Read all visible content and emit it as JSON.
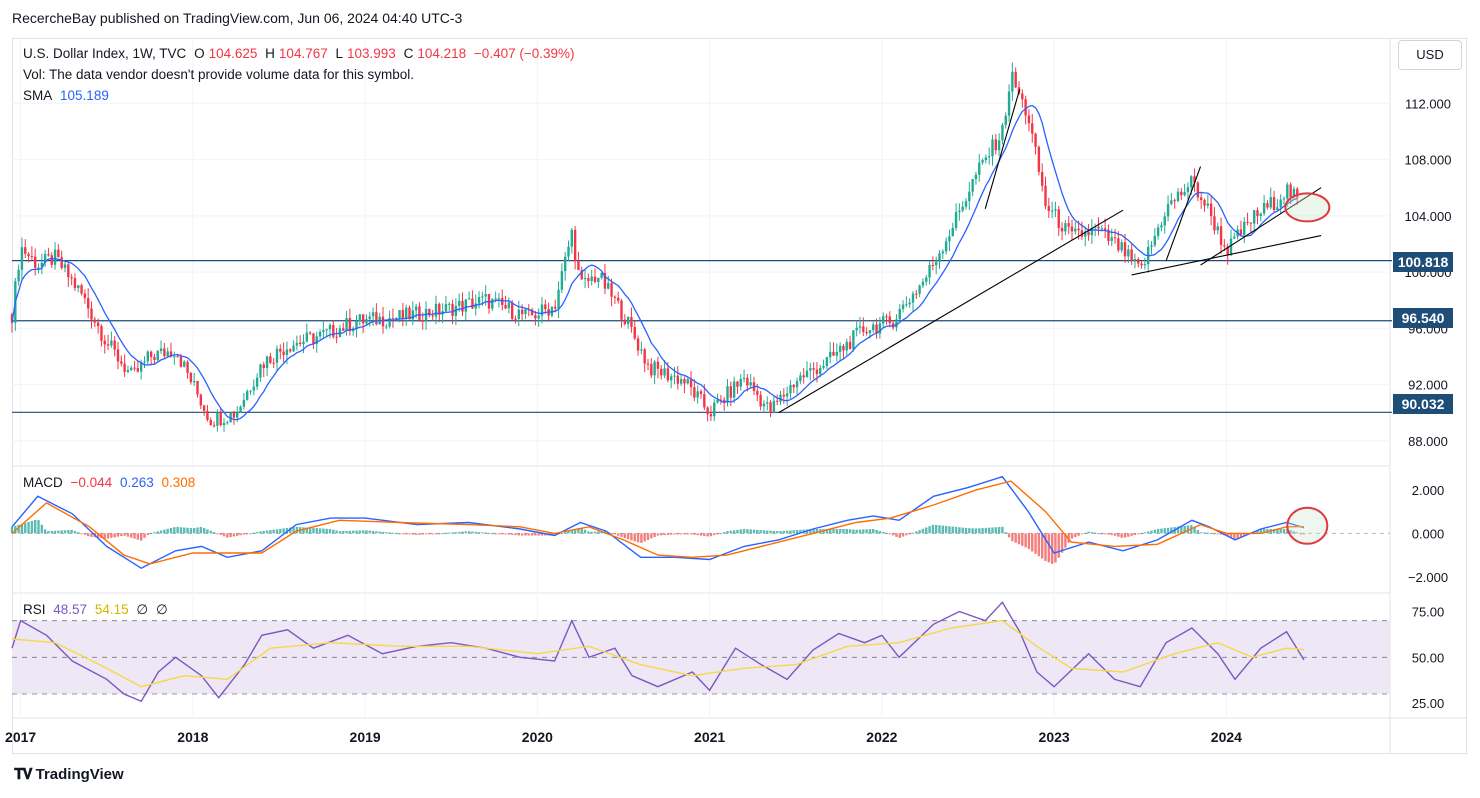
{
  "publisher_line": "RecercheBay published on TradingView.com, Jun 06, 2024 04:40 UTC-3",
  "footer_logo": "TradingView",
  "currency_button": "USD",
  "legend": {
    "symbol": "U.S. Dollar Index, 1W, TVC",
    "open_label": "O",
    "open": "104.625",
    "high_label": "H",
    "high": "104.767",
    "low_label": "L",
    "low": "103.993",
    "close_label": "C",
    "close": "104.218",
    "change": "−0.407 (−0.39%)",
    "vol_note": "Vol: The data vendor doesn't provide volume data for this symbol.",
    "sma_label": "SMA",
    "sma_value": "105.189"
  },
  "macd_legend": {
    "label": "MACD",
    "hist": "−0.044",
    "macd": "0.263",
    "signal": "0.308"
  },
  "rsi_legend": {
    "label": "RSI",
    "rsi": "48.57",
    "rsi_ma": "54.15",
    "extra1": "∅",
    "extra2": "∅"
  },
  "colors": {
    "up": "#22ab94",
    "down": "#f23645",
    "sma": "#2962ff",
    "hline": "#1e4d78",
    "macd": "#2962ff",
    "signal": "#ff6d00",
    "rsi": "#7e57c2",
    "rsi_ma": "#f7d84a",
    "rsi_band": "#ede7f6",
    "annotation": "#e0393e"
  },
  "chart_data": [
    {
      "type": "candlestick",
      "title": "U.S. Dollar Index, 1W, TVC",
      "x_tick_labels": [
        "2017",
        "2018",
        "2019",
        "2020",
        "2021",
        "2022",
        "2023",
        "2024"
      ],
      "y_tick_labels": [
        "88.000",
        "92.000",
        "96.000",
        "100.000",
        "104.000",
        "108.000",
        "112.000"
      ],
      "ylim": [
        86.5,
        116.5
      ],
      "horizontal_levels": [
        {
          "value": 100.818,
          "label": "100.818"
        },
        {
          "value": 96.54,
          "label": "96.540"
        },
        {
          "value": 90.032,
          "label": "90.032"
        }
      ],
      "price_path": [
        [
          2016.95,
          97.0
        ],
        [
          2017.0,
          101.8
        ],
        [
          2017.1,
          100.5
        ],
        [
          2017.2,
          101.0
        ],
        [
          2017.35,
          98.5
        ],
        [
          2017.5,
          95.0
        ],
        [
          2017.65,
          92.5
        ],
        [
          2017.75,
          94.0
        ],
        [
          2017.9,
          94.5
        ],
        [
          2018.0,
          92.0
        ],
        [
          2018.1,
          89.5
        ],
        [
          2018.25,
          90.0
        ],
        [
          2018.4,
          93.5
        ],
        [
          2018.55,
          94.8
        ],
        [
          2018.75,
          95.5
        ],
        [
          2018.95,
          96.5
        ],
        [
          2019.2,
          96.8
        ],
        [
          2019.45,
          97.3
        ],
        [
          2019.7,
          98.0
        ],
        [
          2019.95,
          96.8
        ],
        [
          2020.1,
          97.6
        ],
        [
          2020.2,
          102.8
        ],
        [
          2020.25,
          99.0
        ],
        [
          2020.35,
          99.8
        ],
        [
          2020.5,
          97.0
        ],
        [
          2020.65,
          93.2
        ],
        [
          2020.85,
          92.3
        ],
        [
          2021.0,
          90.0
        ],
        [
          2021.2,
          92.5
        ],
        [
          2021.35,
          90.1
        ],
        [
          2021.5,
          92.3
        ],
        [
          2021.7,
          93.8
        ],
        [
          2021.9,
          96.0
        ],
        [
          2022.05,
          96.4
        ],
        [
          2022.25,
          99.5
        ],
        [
          2022.4,
          103.0
        ],
        [
          2022.55,
          107.0
        ],
        [
          2022.7,
          110.0
        ],
        [
          2022.75,
          114.0
        ],
        [
          2022.85,
          111.0
        ],
        [
          2022.95,
          104.8
        ],
        [
          2023.1,
          102.5
        ],
        [
          2023.25,
          103.0
        ],
        [
          2023.4,
          101.5
        ],
        [
          2023.5,
          100.0
        ],
        [
          2023.65,
          104.5
        ],
        [
          2023.8,
          106.4
        ],
        [
          2023.9,
          104.3
        ],
        [
          2024.0,
          101.5
        ],
        [
          2024.15,
          103.8
        ],
        [
          2024.3,
          105.2
        ],
        [
          2024.35,
          105.9
        ],
        [
          2024.45,
          104.6
        ],
        [
          2024.43,
          104.2
        ]
      ],
      "trendlines": [
        {
          "from": [
            2021.4,
            90.0
          ],
          "to": [
            2023.4,
            104.4
          ]
        },
        {
          "from": [
            2022.6,
            104.5
          ],
          "to": [
            2022.8,
            113.0
          ]
        },
        {
          "from": [
            2023.45,
            99.8
          ],
          "to": [
            2024.55,
            102.6
          ]
        },
        {
          "from": [
            2023.65,
            100.8
          ],
          "to": [
            2023.85,
            107.5
          ]
        },
        {
          "from": [
            2023.85,
            100.5
          ],
          "to": [
            2024.55,
            106.0
          ]
        }
      ],
      "annotation": {
        "type": "ellipse",
        "center": [
          2024.47,
          104.6
        ],
        "note": "highlighted"
      }
    },
    {
      "type": "line",
      "title": "MACD",
      "y_tick_labels": [
        "2.000",
        "0.000",
        "−2.000"
      ],
      "ylim": [
        -2.6,
        3.0
      ],
      "series": [
        {
          "name": "MACD",
          "points": [
            [
              2016.95,
              0.3
            ],
            [
              2017.1,
              1.7
            ],
            [
              2017.3,
              0.9
            ],
            [
              2017.5,
              -0.6
            ],
            [
              2017.7,
              -1.6
            ],
            [
              2017.9,
              -0.8
            ],
            [
              2018.05,
              -0.6
            ],
            [
              2018.2,
              -1.1
            ],
            [
              2018.4,
              -0.8
            ],
            [
              2018.6,
              0.4
            ],
            [
              2018.8,
              0.7
            ],
            [
              2019.0,
              0.7
            ],
            [
              2019.3,
              0.4
            ],
            [
              2019.6,
              0.5
            ],
            [
              2019.9,
              0.2
            ],
            [
              2020.1,
              -0.1
            ],
            [
              2020.25,
              0.5
            ],
            [
              2020.4,
              0.1
            ],
            [
              2020.6,
              -1.1
            ],
            [
              2020.8,
              -1.1
            ],
            [
              2021.0,
              -1.2
            ],
            [
              2021.2,
              -0.6
            ],
            [
              2021.4,
              -0.3
            ],
            [
              2021.6,
              0.2
            ],
            [
              2021.8,
              0.6
            ],
            [
              2021.95,
              0.8
            ],
            [
              2022.1,
              0.6
            ],
            [
              2022.3,
              1.7
            ],
            [
              2022.5,
              2.1
            ],
            [
              2022.7,
              2.6
            ],
            [
              2022.85,
              1.0
            ],
            [
              2023.0,
              -0.9
            ],
            [
              2023.2,
              -0.4
            ],
            [
              2023.4,
              -0.8
            ],
            [
              2023.6,
              -0.3
            ],
            [
              2023.8,
              0.6
            ],
            [
              2023.9,
              0.3
            ],
            [
              2024.05,
              -0.3
            ],
            [
              2024.2,
              0.2
            ],
            [
              2024.35,
              0.5
            ],
            [
              2024.45,
              0.26
            ]
          ]
        },
        {
          "name": "Signal",
          "points": [
            [
              2016.95,
              0.0
            ],
            [
              2017.15,
              1.4
            ],
            [
              2017.4,
              0.3
            ],
            [
              2017.6,
              -1.0
            ],
            [
              2017.75,
              -1.4
            ],
            [
              2018.0,
              -0.9
            ],
            [
              2018.2,
              -0.9
            ],
            [
              2018.4,
              -0.9
            ],
            [
              2018.6,
              0.1
            ],
            [
              2018.85,
              0.6
            ],
            [
              2019.2,
              0.5
            ],
            [
              2019.6,
              0.4
            ],
            [
              2019.9,
              0.3
            ],
            [
              2020.1,
              0.0
            ],
            [
              2020.3,
              0.3
            ],
            [
              2020.5,
              -0.3
            ],
            [
              2020.7,
              -1.0
            ],
            [
              2020.9,
              -1.1
            ],
            [
              2021.1,
              -1.0
            ],
            [
              2021.35,
              -0.5
            ],
            [
              2021.6,
              0.0
            ],
            [
              2021.85,
              0.5
            ],
            [
              2022.05,
              0.7
            ],
            [
              2022.3,
              1.3
            ],
            [
              2022.55,
              2.0
            ],
            [
              2022.75,
              2.4
            ],
            [
              2022.95,
              1.0
            ],
            [
              2023.1,
              -0.4
            ],
            [
              2023.35,
              -0.6
            ],
            [
              2023.6,
              -0.5
            ],
            [
              2023.85,
              0.4
            ],
            [
              2024.0,
              0.0
            ],
            [
              2024.2,
              0.0
            ],
            [
              2024.35,
              0.3
            ],
            [
              2024.45,
              0.31
            ]
          ]
        }
      ]
    },
    {
      "type": "line",
      "title": "RSI",
      "y_tick_labels": [
        "75.00",
        "50.00",
        "25.00"
      ],
      "ylim": [
        18,
        84
      ],
      "bands": [
        70,
        50,
        30
      ],
      "series": [
        {
          "name": "RSI",
          "points": [
            [
              2016.95,
              55
            ],
            [
              2017.0,
              70
            ],
            [
              2017.15,
              62
            ],
            [
              2017.3,
              48
            ],
            [
              2017.5,
              38
            ],
            [
              2017.6,
              30
            ],
            [
              2017.7,
              26
            ],
            [
              2017.8,
              42
            ],
            [
              2017.9,
              50
            ],
            [
              2018.05,
              40
            ],
            [
              2018.15,
              28
            ],
            [
              2018.3,
              46
            ],
            [
              2018.4,
              62
            ],
            [
              2018.55,
              65
            ],
            [
              2018.7,
              55
            ],
            [
              2018.9,
              62
            ],
            [
              2019.1,
              52
            ],
            [
              2019.3,
              56
            ],
            [
              2019.5,
              58
            ],
            [
              2019.7,
              55
            ],
            [
              2019.9,
              50
            ],
            [
              2020.1,
              48
            ],
            [
              2020.2,
              70
            ],
            [
              2020.3,
              50
            ],
            [
              2020.45,
              55
            ],
            [
              2020.55,
              40
            ],
            [
              2020.7,
              34
            ],
            [
              2020.9,
              42
            ],
            [
              2021.0,
              32
            ],
            [
              2021.15,
              55
            ],
            [
              2021.3,
              46
            ],
            [
              2021.45,
              38
            ],
            [
              2021.6,
              54
            ],
            [
              2021.75,
              63
            ],
            [
              2021.9,
              58
            ],
            [
              2022.0,
              62
            ],
            [
              2022.1,
              50
            ],
            [
              2022.3,
              68
            ],
            [
              2022.45,
              75
            ],
            [
              2022.6,
              70
            ],
            [
              2022.7,
              80
            ],
            [
              2022.8,
              64
            ],
            [
              2022.9,
              42
            ],
            [
              2023.0,
              34
            ],
            [
              2023.2,
              52
            ],
            [
              2023.35,
              38
            ],
            [
              2023.5,
              34
            ],
            [
              2023.65,
              58
            ],
            [
              2023.8,
              66
            ],
            [
              2023.95,
              52
            ],
            [
              2024.05,
              38
            ],
            [
              2024.2,
              55
            ],
            [
              2024.35,
              64
            ],
            [
              2024.45,
              48.6
            ]
          ]
        },
        {
          "name": "RSI MA",
          "points": [
            [
              2016.95,
              60
            ],
            [
              2017.2,
              58
            ],
            [
              2017.5,
              44
            ],
            [
              2017.7,
              34
            ],
            [
              2017.95,
              40
            ],
            [
              2018.2,
              38
            ],
            [
              2018.45,
              55
            ],
            [
              2018.8,
              58
            ],
            [
              2019.2,
              56
            ],
            [
              2019.6,
              56
            ],
            [
              2020.0,
              52
            ],
            [
              2020.3,
              56
            ],
            [
              2020.6,
              46
            ],
            [
              2020.9,
              40
            ],
            [
              2021.2,
              44
            ],
            [
              2021.5,
              46
            ],
            [
              2021.8,
              56
            ],
            [
              2022.1,
              58
            ],
            [
              2022.4,
              66
            ],
            [
              2022.7,
              70
            ],
            [
              2022.9,
              56
            ],
            [
              2023.1,
              44
            ],
            [
              2023.4,
              42
            ],
            [
              2023.7,
              52
            ],
            [
              2023.95,
              58
            ],
            [
              2024.15,
              50
            ],
            [
              2024.35,
              55
            ],
            [
              2024.45,
              54.2
            ]
          ]
        }
      ]
    }
  ]
}
